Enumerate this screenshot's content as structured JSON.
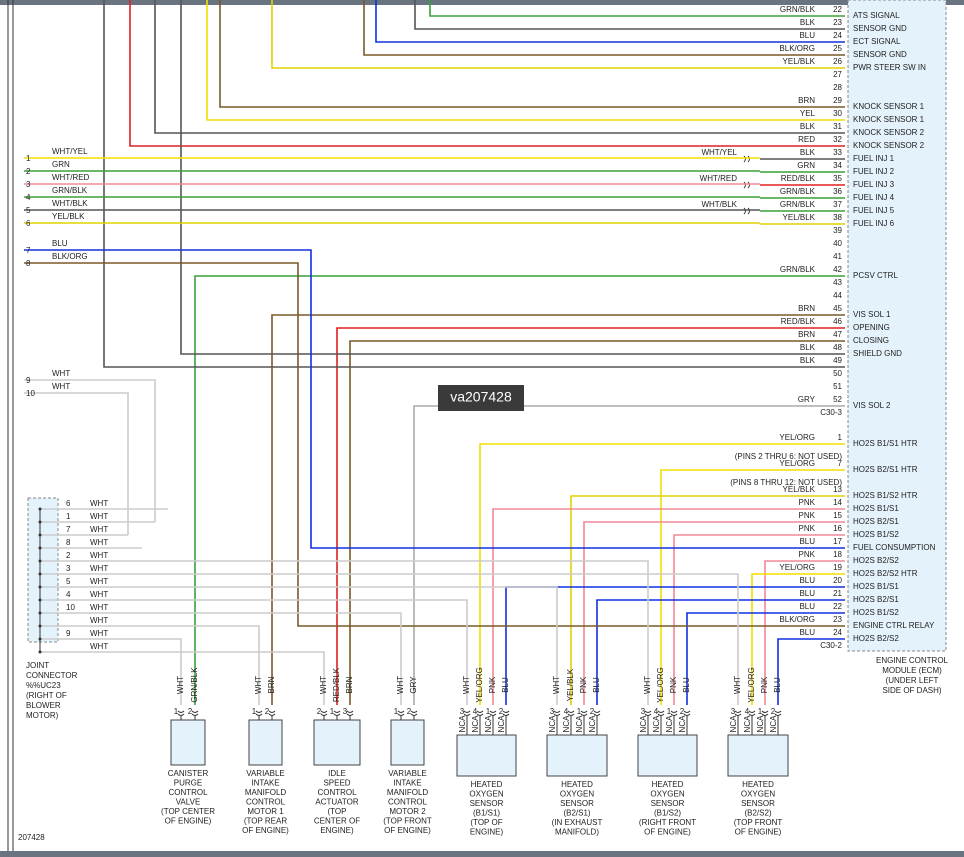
{
  "watermark": "va207428",
  "diagram_id": "207428",
  "ecm": {
    "name": [
      "ENGINE CONTROL",
      "MODULE (ECM)",
      "(UNDER LEFT",
      "SIDE OF DASH)"
    ],
    "c30_3": {
      "label": "C30-3",
      "rows": [
        {
          "pin": 22,
          "wire": "GRN/BLK",
          "color": "#3aa03a",
          "function": "ATS SIGNAL"
        },
        {
          "pin": 23,
          "wire": "BLK",
          "color": "#555555",
          "function": "SENSOR GND"
        },
        {
          "pin": 24,
          "wire": "BLU",
          "color": "#1030e0",
          "function": "ECT SIGNAL"
        },
        {
          "pin": 25,
          "wire": "BLK/ORG",
          "color": "#7a5a2a",
          "function": "SENSOR GND"
        },
        {
          "pin": 26,
          "wire": "YEL/BLK",
          "color": "#e0d000",
          "function": "PWR STEER SW IN"
        },
        {
          "pin": 27
        },
        {
          "pin": 28
        },
        {
          "pin": 29,
          "wire": "BRN",
          "color": "#7a5a2a",
          "function": "KNOCK SENSOR 1"
        },
        {
          "pin": 30,
          "wire": "YEL",
          "color": "#f0e000",
          "function": "KNOCK SENSOR 1"
        },
        {
          "pin": 31,
          "wire": "BLK",
          "color": "#555555",
          "function": "KNOCK SENSOR 2"
        },
        {
          "pin": 32,
          "wire": "RED",
          "color": "#e02020",
          "function": "KNOCK SENSOR 2"
        },
        {
          "pin": 33,
          "wire": "BLK",
          "color": "#555555",
          "function": "FUEL INJ 1",
          "splice": "WHT/YEL"
        },
        {
          "pin": 34,
          "wire": "GRN",
          "color": "#3aa03a",
          "function": "FUEL INJ 2"
        },
        {
          "pin": 35,
          "wire": "RED/BLK",
          "color": "#e02020",
          "function": "FUEL INJ 3",
          "splice": "WHT/RED"
        },
        {
          "pin": 36,
          "wire": "GRN/BLK",
          "color": "#3aa03a",
          "function": "FUEL INJ 4"
        },
        {
          "pin": 37,
          "wire": "GRN/BLK",
          "color": "#3aa03a",
          "function": "FUEL INJ 5",
          "splice": "WHT/BLK"
        },
        {
          "pin": 38,
          "wire": "YEL/BLK",
          "color": "#e0d000",
          "function": "FUEL INJ 6"
        },
        {
          "pin": 39
        },
        {
          "pin": 40
        },
        {
          "pin": 41
        },
        {
          "pin": 42,
          "wire": "GRN/BLK",
          "color": "#3aa03a",
          "function": "PCSV CTRL"
        },
        {
          "pin": 43
        },
        {
          "pin": 44
        },
        {
          "pin": 45,
          "wire": "BRN",
          "color": "#7a5a2a",
          "function": "VIS SOL 1"
        },
        {
          "pin": 46,
          "wire": "RED/BLK",
          "color": "#e02020",
          "function": "OPENING"
        },
        {
          "pin": 47,
          "wire": "BRN",
          "color": "#7a5a2a",
          "function": "CLOSING"
        },
        {
          "pin": 48,
          "wire": "BLK",
          "color": "#555555",
          "function": "SHIELD GND"
        },
        {
          "pin": 49,
          "wire": "BLK",
          "color": "#555555"
        },
        {
          "pin": 50
        },
        {
          "pin": 51
        },
        {
          "pin": 52,
          "wire": "GRY",
          "color": "#aaaaaa",
          "function": "VIS SOL 2"
        }
      ]
    },
    "c30_2": {
      "label": "C30-2",
      "rows": [
        {
          "pin": 1,
          "wire": "YEL/ORG",
          "color": "#f0e000",
          "function": "HO2S B1/S1 HTR"
        },
        {
          "note": "(PINS 2 THRU 6: NOT USED)"
        },
        {
          "pin": 7,
          "wire": "YEL/ORG",
          "color": "#f0e000",
          "function": "HO2S B2/S1 HTR"
        },
        {
          "note": "(PINS 8 THRU 12: NOT USED)"
        },
        {
          "pin": 13,
          "wire": "YEL/BLK",
          "color": "#e0d000",
          "function": "HO2S B1/S2 HTR"
        },
        {
          "pin": 14,
          "wire": "PNK",
          "color": "#f08898",
          "function": "HO2S B1/S1"
        },
        {
          "pin": 15,
          "wire": "PNK",
          "color": "#f08898",
          "function": "HO2S B2/S1"
        },
        {
          "pin": 16,
          "wire": "PNK",
          "color": "#f08898",
          "function": "HO2S B1/S2"
        },
        {
          "pin": 17,
          "wire": "BLU",
          "color": "#1030e0",
          "function": "FUEL CONSUMPTION"
        },
        {
          "pin": 18,
          "wire": "PNK",
          "color": "#f08898",
          "function": "HO2S B2/S2"
        },
        {
          "pin": 19,
          "wire": "YEL/ORG",
          "color": "#f0e000",
          "function": "HO2S B2/S2 HTR"
        },
        {
          "pin": 20,
          "wire": "BLU",
          "color": "#1030e0",
          "function": "HO2S B1/S1"
        },
        {
          "pin": 21,
          "wire": "BLU",
          "color": "#1030e0",
          "function": "HO2S B2/S1"
        },
        {
          "pin": 22,
          "wire": "BLU",
          "color": "#1030e0",
          "function": "HO2S B1/S2"
        },
        {
          "pin": 23,
          "wire": "BLK/ORG",
          "color": "#7a5a2a",
          "function": "ENGINE CTRL RELAY"
        },
        {
          "pin": 24,
          "wire": "BLU",
          "color": "#1030e0",
          "function": "HO2S B2/S2"
        }
      ]
    }
  },
  "harness": [
    {
      "num": 1,
      "wire": "WHT/YEL",
      "color": "#f0e000"
    },
    {
      "num": 2,
      "wire": "GRN",
      "color": "#3aa03a"
    },
    {
      "num": 3,
      "wire": "WHT/RED",
      "color": "#f08898"
    },
    {
      "num": 4,
      "wire": "GRN/BLK",
      "color": "#3aa03a"
    },
    {
      "num": 5,
      "wire": "WHT/BLK",
      "color": "#555555"
    },
    {
      "num": 6,
      "wire": "YEL/BLK",
      "color": "#e0d000"
    },
    {
      "num": 7,
      "wire": "BLU",
      "color": "#1030e0"
    },
    {
      "num": 8,
      "wire": "BLK/ORG",
      "color": "#7a5a2a"
    },
    {
      "num": 9,
      "wire": "WHT",
      "color": "#cccccc"
    },
    {
      "num": 10,
      "wire": "WHT",
      "color": "#cccccc"
    }
  ],
  "joint": {
    "name": [
      "JOINT",
      "CONNECTOR",
      "%%UC23",
      "(RIGHT OF",
      "BLOWER",
      "MOTOR)"
    ],
    "color": "#cccccc",
    "rows": [
      {
        "pin": 6,
        "wire": "WHT"
      },
      {
        "pin": 1,
        "wire": "WHT"
      },
      {
        "pin": 7,
        "wire": "WHT"
      },
      {
        "pin": 8,
        "wire": "WHT"
      },
      {
        "pin": 2,
        "wire": "WHT"
      },
      {
        "pin": 3,
        "wire": "WHT"
      },
      {
        "pin": 5,
        "wire": "WHT"
      },
      {
        "pin": 4,
        "wire": "WHT"
      },
      {
        "pin": 10,
        "wire": "WHT"
      },
      {
        "pin": null,
        "wire": "WHT"
      },
      {
        "pin": 9,
        "wire": "WHT"
      },
      {
        "pin": null,
        "wire": "WHT"
      }
    ]
  },
  "components": [
    {
      "name": [
        "CANISTER",
        "PURGE",
        "CONTROL",
        "VALVE",
        "(TOP CENTER",
        "OF ENGINE)"
      ],
      "pins": [
        {
          "pin": 1,
          "wire": "WHT"
        },
        {
          "pin": 2,
          "wire": "GRN/BLK"
        }
      ]
    },
    {
      "name": [
        "VARIABLE",
        "INTAKE",
        "MANIFOLD",
        "CONTROL",
        "MOTOR 1",
        "(TOP REAR",
        "OF ENGINE)"
      ],
      "pins": [
        {
          "pin": 1,
          "wire": "WHT"
        },
        {
          "pin": 2,
          "wire": "BRN"
        }
      ]
    },
    {
      "name": [
        "IDLE",
        "SPEED",
        "CONTROL",
        "ACTUATOR",
        "(TOP",
        "CENTER OF",
        "ENGINE)"
      ],
      "pins": [
        {
          "pin": 2,
          "wire": "WHT"
        },
        {
          "pin": 1,
          "wire": "RED/BLK"
        },
        {
          "pin": 3,
          "wire": "BRN"
        }
      ]
    },
    {
      "name": [
        "VARIABLE",
        "INTAKE",
        "MANIFOLD",
        "CONTROL",
        "MOTOR 2",
        "(TOP FRONT",
        "OF ENGINE)"
      ],
      "pins": [
        {
          "pin": 1,
          "wire": "WHT"
        },
        {
          "pin": 2,
          "wire": "GRY"
        }
      ]
    },
    {
      "name": [
        "HEATED",
        "OXYGEN",
        "SENSOR",
        "(B1/S1)",
        "(TOP OF",
        "ENGINE)"
      ],
      "pins": [
        {
          "pin": 3,
          "wire": "WHT",
          "terminal": "NCA"
        },
        {
          "pin": 4,
          "wire": "YEL/ORG",
          "terminal": "NCA"
        },
        {
          "pin": 1,
          "wire": "PNK",
          "terminal": "NCA"
        },
        {
          "pin": 2,
          "wire": "BLU",
          "terminal": "NCA"
        }
      ]
    },
    {
      "name": [
        "HEATED",
        "OXYGEN",
        "SENSOR",
        "(B2/S1)",
        "(IN EXHAUST",
        "MANIFOLD)"
      ],
      "pins": [
        {
          "pin": 3,
          "wire": "WHT",
          "terminal": "NCA"
        },
        {
          "pin": 4,
          "wire": "YEL/BLK",
          "terminal": "NCA"
        },
        {
          "pin": 1,
          "wire": "PNK",
          "terminal": "NCA"
        },
        {
          "pin": 2,
          "wire": "BLU",
          "terminal": "NCA"
        }
      ]
    },
    {
      "name": [
        "HEATED",
        "OXYGEN",
        "SENSOR",
        "(B1/S2)",
        "(RIGHT FRONT",
        "OF ENGINE)"
      ],
      "pins": [
        {
          "pin": 3,
          "wire": "WHT",
          "terminal": "NCA"
        },
        {
          "pin": 4,
          "wire": "YEL/ORG",
          "terminal": "NCA"
        },
        {
          "pin": 1,
          "wire": "PNK",
          "terminal": "NCA"
        },
        {
          "pin": 2,
          "wire": "BLU",
          "terminal": "NCA"
        }
      ]
    },
    {
      "name": [
        "HEATED",
        "OXYGEN",
        "SENSOR",
        "(B2/S2)",
        "(TOP FRONT",
        "OF ENGINE)"
      ],
      "pins": [
        {
          "pin": 3,
          "wire": "WHT",
          "terminal": "NCA"
        },
        {
          "pin": 4,
          "wire": "YEL/ORG",
          "terminal": "NCA"
        },
        {
          "pin": 1,
          "wire": "PNK",
          "terminal": "NCA"
        },
        {
          "pin": 2,
          "wire": "BLU",
          "terminal": "NCA"
        }
      ]
    }
  ]
}
